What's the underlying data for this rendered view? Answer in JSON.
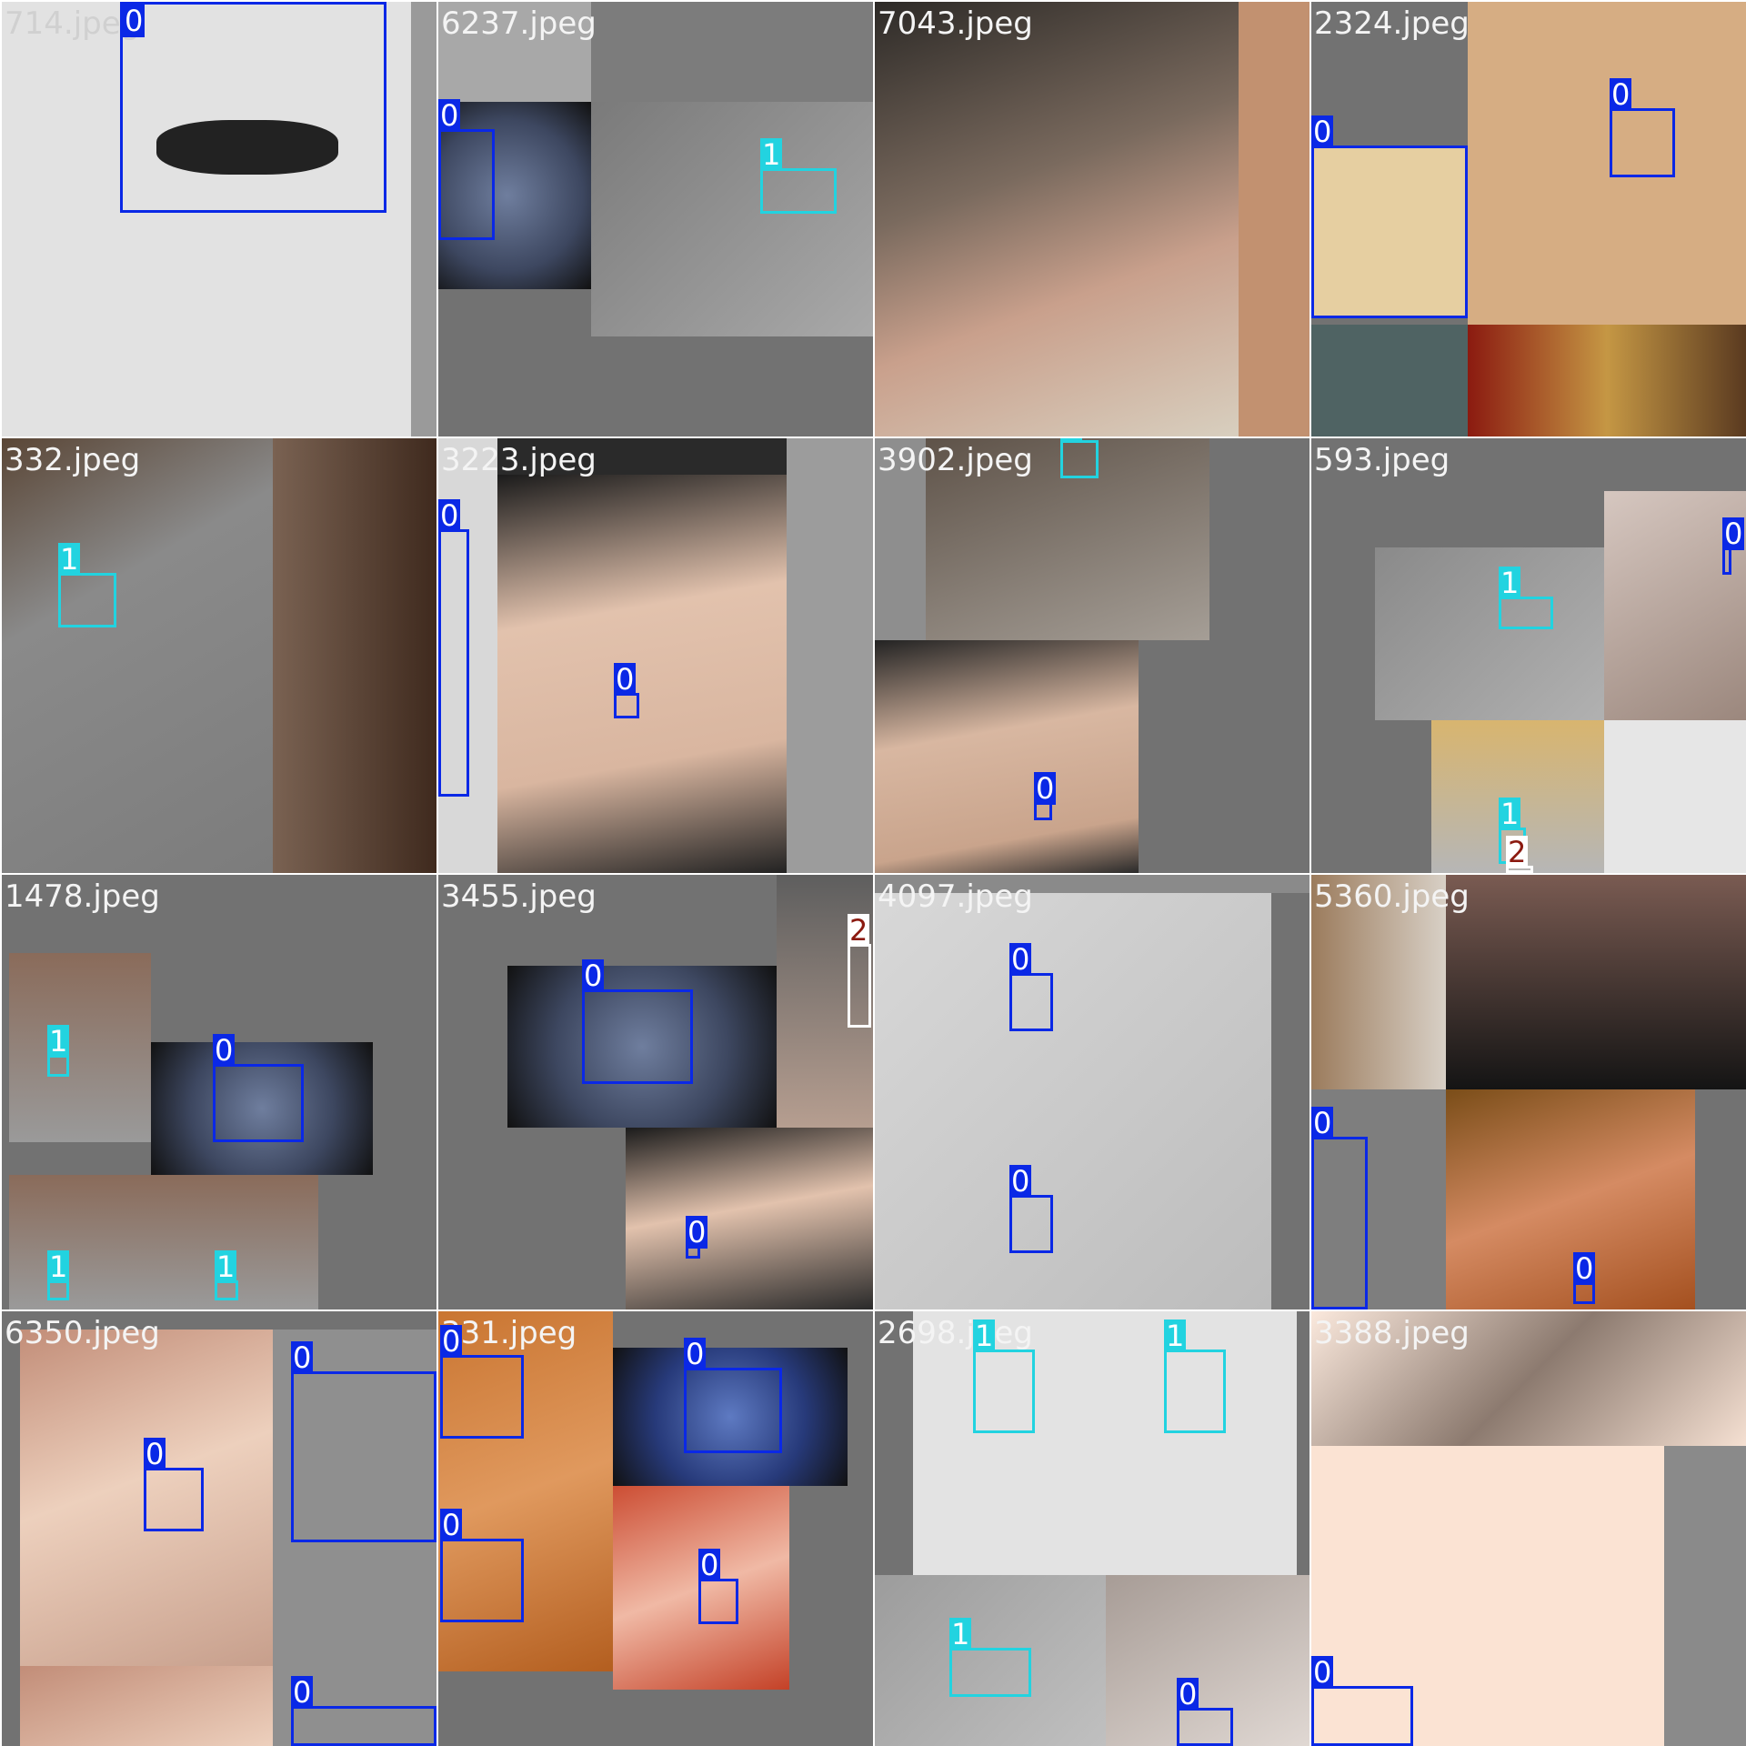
{
  "class_colors": {
    "0": "#0a28e6",
    "1": "#22d3e0",
    "2": "#ffffff"
  },
  "tiles": [
    {
      "name": "tile-1",
      "filename": "714.jpeg",
      "boxes": [
        "0"
      ]
    },
    {
      "name": "tile-2",
      "filename": "6237.jpeg",
      "boxes": [
        "0",
        "1"
      ]
    },
    {
      "name": "tile-3",
      "filename": "7043.jpeg",
      "boxes": []
    },
    {
      "name": "tile-4",
      "filename": "2324.jpeg",
      "boxes": [
        "0",
        "0"
      ]
    },
    {
      "name": "tile-5",
      "filename": "332.jpeg",
      "boxes": [
        "1"
      ]
    },
    {
      "name": "tile-6",
      "filename": "3223.jpeg",
      "boxes": [
        "0",
        "0"
      ]
    },
    {
      "name": "tile-7",
      "filename": "3902.jpeg",
      "boxes": [
        "1",
        "0"
      ]
    },
    {
      "name": "tile-8",
      "filename": "593.jpeg",
      "boxes": [
        "1",
        "0",
        "1",
        "2"
      ]
    },
    {
      "name": "tile-9",
      "filename": "1478.jpeg",
      "boxes": [
        "1",
        "0",
        "1",
        "1"
      ]
    },
    {
      "name": "tile-10",
      "filename": "3455.jpeg",
      "boxes": [
        "0",
        "2",
        "0"
      ]
    },
    {
      "name": "tile-11",
      "filename": "4097.jpeg",
      "boxes": [
        "0",
        "0"
      ]
    },
    {
      "name": "tile-12",
      "filename": "5360.jpeg",
      "boxes": [
        "0",
        "0"
      ]
    },
    {
      "name": "tile-13",
      "filename": "6350.jpeg",
      "boxes": [
        "0",
        "0",
        "0"
      ]
    },
    {
      "name": "tile-14",
      "filename": "331.jpeg",
      "boxes": [
        "0",
        "0",
        "0",
        "0"
      ]
    },
    {
      "name": "tile-15",
      "filename": "2698.jpeg",
      "boxes": [
        "1",
        "1",
        "1",
        "0"
      ]
    },
    {
      "name": "tile-16",
      "filename": "3388.jpeg",
      "boxes": [
        "0"
      ]
    }
  ]
}
